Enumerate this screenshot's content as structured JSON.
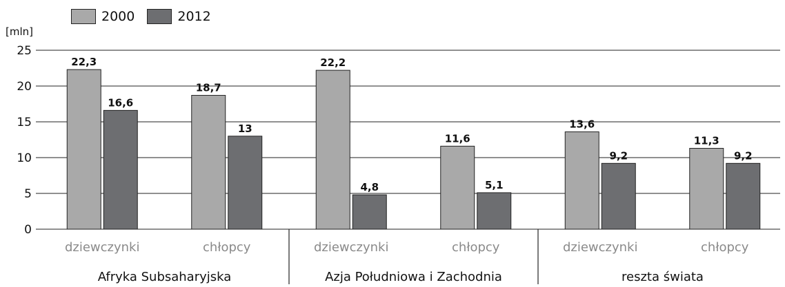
{
  "chart_data": {
    "type": "bar",
    "ylabel": "[mln]",
    "ylim": [
      0,
      25
    ],
    "yticks": [
      "0",
      "5",
      "10",
      "15",
      "20",
      "25"
    ],
    "grid": true,
    "legend_position": "top-left",
    "series": [
      {
        "name": "2000",
        "color": "#a9a9a9"
      },
      {
        "name": "2012",
        "color": "#6d6e71"
      }
    ],
    "groups": [
      {
        "label": "Afryka Subsaharyjska",
        "categories": [
          {
            "label": "dziewczynki",
            "values": [
              22.3,
              16.6
            ],
            "value_labels": [
              "22,3",
              "16,6"
            ]
          },
          {
            "label": "chłopcy",
            "values": [
              18.7,
              13
            ],
            "value_labels": [
              "18,7",
              "13"
            ]
          }
        ]
      },
      {
        "label": "Azja Południowa i Zachodnia",
        "categories": [
          {
            "label": "dziewczynki",
            "values": [
              22.2,
              4.8
            ],
            "value_labels": [
              "22,2",
              "4,8"
            ]
          },
          {
            "label": "chłopcy",
            "values": [
              11.6,
              5.1
            ],
            "value_labels": [
              "11,6",
              "5,1"
            ]
          }
        ]
      },
      {
        "label": "reszta świata",
        "categories": [
          {
            "label": "dziewczynki",
            "values": [
              13.6,
              9.2
            ],
            "value_labels": [
              "13,6",
              "9,2"
            ]
          },
          {
            "label": "chłopcy",
            "values": [
              11.3,
              9.2
            ],
            "value_labels": [
              "11,3",
              "9,2"
            ]
          }
        ]
      }
    ]
  }
}
